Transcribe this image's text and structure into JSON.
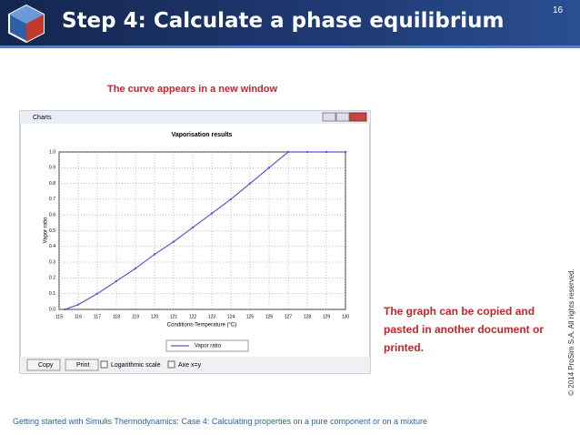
{
  "slide": {
    "title": "Step 4: Calculate a phase equilibrium",
    "page_number": "16",
    "caption": "The curve appears in a new window",
    "note": "The graph can be copied and pasted in another document or printed.",
    "copyright": "© 2014 ProSim S.A. All rights reserved.",
    "footer": "Getting started with Simulis Thermodynamics: Case 4: Calculating properties on a pure component or on a mixture"
  },
  "window": {
    "title": "Charts",
    "buttons": [
      "Copy",
      "Print"
    ],
    "checkboxes": [
      "Logarithmic scale",
      "Axe x=y"
    ]
  },
  "chart_data": {
    "type": "line",
    "title": "Vaporisation results",
    "x_label": "Conditions-Temperature (°C)",
    "y_label": "Vapor ratio",
    "x": [
      115.3,
      116,
      117,
      118,
      119,
      120,
      121,
      122,
      123,
      124,
      125,
      126,
      127,
      128,
      129,
      130
    ],
    "series": [
      {
        "name": "Vapor ratio",
        "color": "#5b5bd6",
        "values": [
          0,
          0.03,
          0.1,
          0.18,
          0.26,
          0.35,
          0.43,
          0.52,
          0.61,
          0.7,
          0.8,
          0.9,
          1,
          1,
          1,
          1
        ]
      }
    ],
    "xlim": [
      115,
      130
    ],
    "xticks": [
      115,
      116,
      117,
      118,
      119,
      120,
      121,
      122,
      123,
      124,
      125,
      126,
      127,
      128,
      129,
      130
    ],
    "ylim": [
      0,
      1
    ],
    "yticks": [
      {
        "value": 0,
        "label": "0.0"
      },
      0.1,
      0.2,
      0.3,
      0.4,
      0.5,
      0.6,
      0.7,
      0.8,
      0.9,
      {
        "value": 1,
        "label": "1.0"
      }
    ],
    "grid": true
  }
}
